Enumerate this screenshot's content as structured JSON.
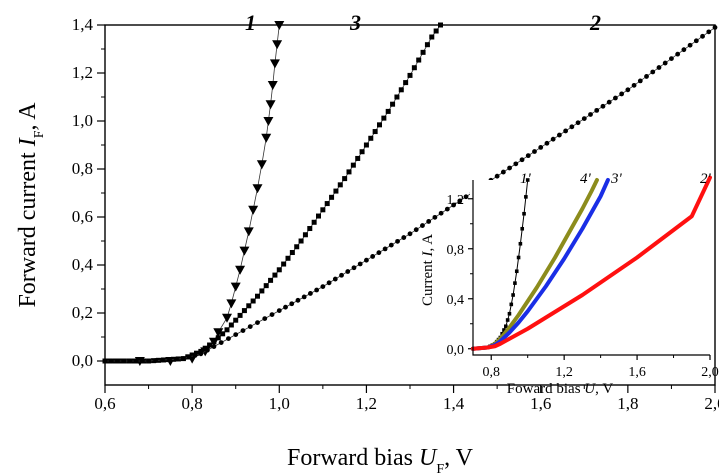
{
  "chart_data": [
    {
      "type": "scatter",
      "xlim": [
        0.6,
        2.0
      ],
      "ylim": [
        -0.1,
        1.4
      ],
      "x_ticks": [
        "0,6",
        "0,8",
        "1,0",
        "1,2",
        "1,4",
        "1,6",
        "1,8",
        "2,0"
      ],
      "y_ticks": [
        "0,0",
        "0,2",
        "0,4",
        "0,6",
        "0,8",
        "1,0",
        "1,2",
        "1,4"
      ],
      "xlabel": {
        "prefix": "Forward bias ",
        "var": "U",
        "sub": "F",
        "suffix": ", V"
      },
      "ylabel": {
        "prefix": "Forward current ",
        "var": "I",
        "sub": "F",
        "suffix": ", A"
      },
      "series": [
        {
          "name": "1",
          "marker": "triangle-down",
          "color": "#000000",
          "x": [
            0.68,
            0.75,
            0.8,
            0.83,
            0.85,
            0.86,
            0.88,
            0.89,
            0.9,
            0.91,
            0.92,
            0.93,
            0.94,
            0.95,
            0.96,
            0.97,
            0.975,
            0.98,
            0.985,
            0.99,
            0.995,
            1.0
          ],
          "y": [
            0.0,
            0.0,
            0.01,
            0.04,
            0.08,
            0.12,
            0.18,
            0.24,
            0.31,
            0.38,
            0.46,
            0.54,
            0.63,
            0.72,
            0.82,
            0.93,
            1.0,
            1.07,
            1.15,
            1.24,
            1.32,
            1.4
          ]
        },
        {
          "name": "3",
          "marker": "square",
          "color": "#000000",
          "x": [
            0.6,
            0.7,
            0.78,
            0.82,
            0.85,
            0.88,
            0.9,
            0.95,
            1.0,
            1.05,
            1.1,
            1.15,
            1.2,
            1.25,
            1.3,
            1.35,
            1.37
          ],
          "y": [
            0.0,
            0.0,
            0.01,
            0.04,
            0.08,
            0.13,
            0.17,
            0.27,
            0.38,
            0.5,
            0.63,
            0.76,
            0.9,
            1.04,
            1.19,
            1.35,
            1.4
          ]
        },
        {
          "name": "2",
          "marker": "circle",
          "color": "#000000",
          "x": [
            0.6,
            0.7,
            0.78,
            0.82,
            0.85,
            0.9,
            0.95,
            1.0,
            1.1,
            1.2,
            1.3,
            1.4,
            1.5,
            1.6,
            1.7,
            1.8,
            1.9,
            2.0
          ],
          "y": [
            0.0,
            0.0,
            0.01,
            0.03,
            0.06,
            0.11,
            0.16,
            0.21,
            0.31,
            0.42,
            0.53,
            0.65,
            0.77,
            0.89,
            1.01,
            1.13,
            1.26,
            1.39
          ]
        }
      ]
    },
    {
      "type": "line",
      "xlim": [
        0.7,
        2.0
      ],
      "ylim": [
        -0.05,
        1.35
      ],
      "x_ticks": [
        "0,8",
        "1,2",
        "1,6",
        "2,0"
      ],
      "y_ticks": [
        "0,0",
        "0,4",
        "0,8",
        "1,2"
      ],
      "xlabel": {
        "prefix": "Foward bias ",
        "var": "U",
        "suffix": ", V"
      },
      "ylabel": {
        "prefix": "Current ",
        "var": "I",
        "suffix": ", A"
      },
      "series": [
        {
          "name": "1'",
          "marker": "square",
          "color": "#000000",
          "x": [
            0.7,
            0.78,
            0.82,
            0.85,
            0.88,
            0.9,
            0.92,
            0.94,
            0.96,
            0.98,
            1.0
          ],
          "y": [
            0.0,
            0.01,
            0.04,
            0.09,
            0.18,
            0.28,
            0.43,
            0.62,
            0.84,
            1.08,
            1.35
          ]
        },
        {
          "name": "4'",
          "marker": "line",
          "color": "#8c8c1c",
          "x": [
            0.7,
            0.78,
            0.82,
            0.85,
            0.9,
            0.95,
            1.0,
            1.05,
            1.1,
            1.15,
            1.2,
            1.25,
            1.3,
            1.35,
            1.38
          ],
          "y": [
            0.0,
            0.01,
            0.04,
            0.08,
            0.17,
            0.27,
            0.38,
            0.49,
            0.61,
            0.73,
            0.86,
            0.99,
            1.12,
            1.26,
            1.35
          ]
        },
        {
          "name": "3'",
          "marker": "line",
          "color": "#1a2ee6",
          "x": [
            0.7,
            0.78,
            0.82,
            0.85,
            0.9,
            0.95,
            1.0,
            1.05,
            1.1,
            1.15,
            1.2,
            1.25,
            1.3,
            1.35,
            1.4,
            1.44
          ],
          "y": [
            0.0,
            0.01,
            0.03,
            0.06,
            0.13,
            0.21,
            0.3,
            0.4,
            0.5,
            0.61,
            0.72,
            0.84,
            0.96,
            1.09,
            1.22,
            1.35
          ]
        },
        {
          "name": "2'",
          "marker": "line",
          "color": "#ff1010",
          "x": [
            0.7,
            0.78,
            0.82,
            0.85,
            0.9,
            1.0,
            1.1,
            1.2,
            1.3,
            1.4,
            1.5,
            1.6,
            1.7,
            1.8,
            1.9,
            2.0
          ],
          "y": [
            0.0,
            0.01,
            0.02,
            0.04,
            0.08,
            0.16,
            0.25,
            0.34,
            0.43,
            0.53,
            0.63,
            0.73,
            0.84,
            0.95,
            1.06,
            1.37
          ]
        }
      ]
    }
  ]
}
